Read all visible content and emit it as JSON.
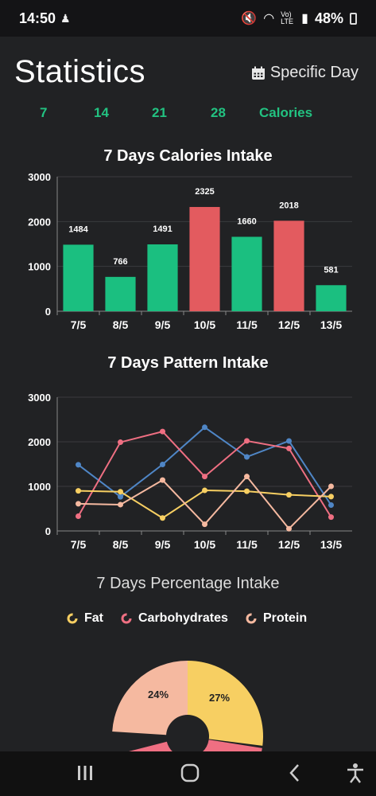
{
  "status_bar": {
    "time": "14:50",
    "network": "Vo) LTE",
    "battery": "48%"
  },
  "header": {
    "title": "Statistics",
    "specific_day_label": "Specific Day"
  },
  "tabs": [
    {
      "label": "7"
    },
    {
      "label": "14"
    },
    {
      "label": "21"
    },
    {
      "label": "28"
    },
    {
      "label": "Calories"
    }
  ],
  "colors": {
    "accent": "#22c281",
    "over": "#e35b5f",
    "fat": "#f7cf62",
    "carbs": "#ef6f82",
    "protein": "#f5b9a0",
    "calories_line": "#4f86c6"
  },
  "chart_data": [
    {
      "type": "bar",
      "title": "7 Days Calories Intake",
      "categories": [
        "7/5",
        "8/5",
        "9/5",
        "10/5",
        "11/5",
        "12/5",
        "13/5"
      ],
      "values": [
        1484,
        766,
        1491,
        2325,
        1660,
        2018,
        581
      ],
      "bar_colors": [
        "#1bbf80",
        "#1bbf80",
        "#1bbf80",
        "#e35b5f",
        "#1bbf80",
        "#e35b5f",
        "#1bbf80"
      ],
      "yticks": [
        0,
        1000,
        2000,
        3000
      ],
      "ylim": [
        0,
        3000
      ],
      "grid": true
    },
    {
      "type": "line",
      "title": "7 Days Pattern Intake",
      "categories": [
        "7/5",
        "8/5",
        "9/5",
        "10/5",
        "11/5",
        "12/5",
        "13/5"
      ],
      "yticks": [
        0,
        1000,
        2000,
        3000
      ],
      "ylim": [
        0,
        3000
      ],
      "grid": true,
      "series": [
        {
          "values": [
            1484,
            766,
            1491,
            2325,
            1660,
            2018,
            581
          ],
          "color": "#4f86c6"
        },
        {
          "values": [
            330,
            1990,
            2230,
            1220,
            2020,
            1850,
            310
          ],
          "color": "#ef6f82"
        },
        {
          "values": [
            900,
            880,
            290,
            910,
            890,
            810,
            770
          ],
          "color": "#f7cf62"
        },
        {
          "values": [
            610,
            590,
            1140,
            150,
            1220,
            50,
            1000
          ],
          "color": "#f5b9a0"
        }
      ]
    },
    {
      "type": "pie",
      "title": "7 Days Percentage Intake",
      "legend": [
        "Fat",
        "Carbohydrates",
        "Protein"
      ],
      "slices": [
        {
          "label": "24%",
          "value": 24,
          "color": "#f5b9a0"
        },
        {
          "label": "27%",
          "value": 27,
          "color": "#f7cf62"
        }
      ]
    }
  ]
}
